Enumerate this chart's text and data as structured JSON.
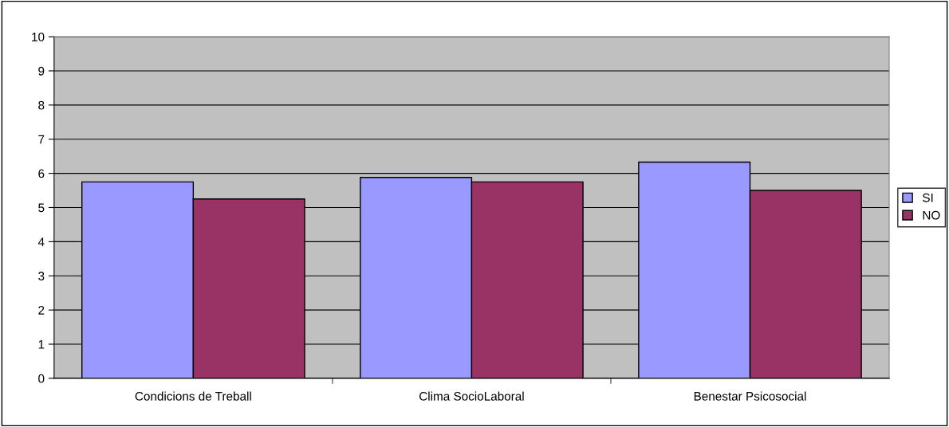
{
  "chart_data": {
    "type": "bar",
    "categories": [
      "Condicions de Treball",
      "Clima SocioLaboral",
      "Benestar Psicosocial"
    ],
    "series": [
      {
        "name": "SI",
        "color": "#9999ff",
        "values": [
          5.75,
          5.88,
          6.33
        ]
      },
      {
        "name": "NO",
        "color": "#993366",
        "values": [
          5.25,
          5.75,
          5.5
        ]
      }
    ],
    "ylim": [
      0,
      10
    ],
    "yticks": [
      0,
      1,
      2,
      3,
      4,
      5,
      6,
      7,
      8,
      9,
      10
    ],
    "grid": "y",
    "legend": "right"
  }
}
